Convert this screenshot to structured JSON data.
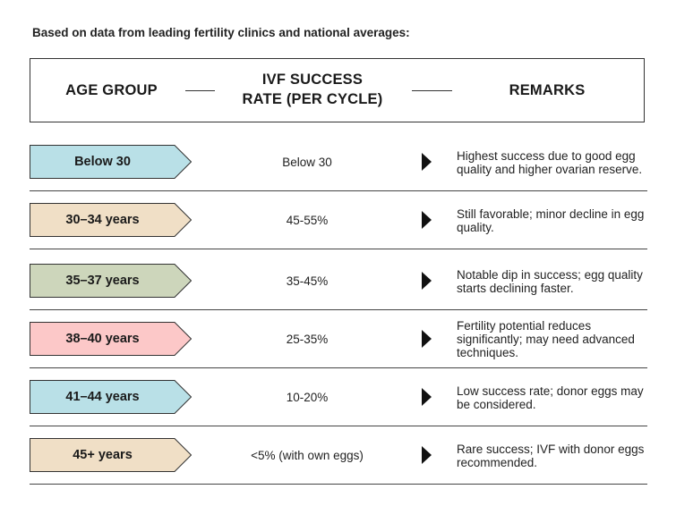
{
  "intro": "Based on data from leading fertility clinics and national averages:",
  "header": {
    "age_group": "AGE GROUP",
    "rate_line1": "IVF SUCCESS",
    "rate_line2": "RATE (PER CYCLE)",
    "remarks": "REMARKS"
  },
  "rows": [
    {
      "age": "Below 30",
      "rate": "Below 30",
      "remark": "Highest success due to good egg quality and higher ovarian reserve.",
      "color": "#b9e0e7"
    },
    {
      "age": "30–34 years",
      "rate": "45-55%",
      "remark": "Still favorable; minor decline in egg quality.",
      "color": "#f0dfc6"
    },
    {
      "age": "35–37 years",
      "rate": "35-45%",
      "remark": "Notable dip in success; egg quality starts declining faster.",
      "color": "#cdd6bb"
    },
    {
      "age": "38–40 years",
      "rate": "25-35%",
      "remark": "Fertility potential reduces significantly; may need advanced techniques.",
      "color": "#fcc8c8"
    },
    {
      "age": "41–44 years",
      "rate": "10-20%",
      "remark": "Low success rate; donor eggs may be considered.",
      "color": "#b9e0e7"
    },
    {
      "age": "45+ years",
      "rate": "<5% (with own eggs)",
      "remark": "Rare success; IVF with donor eggs recommended.",
      "color": "#f0dfc6"
    }
  ]
}
